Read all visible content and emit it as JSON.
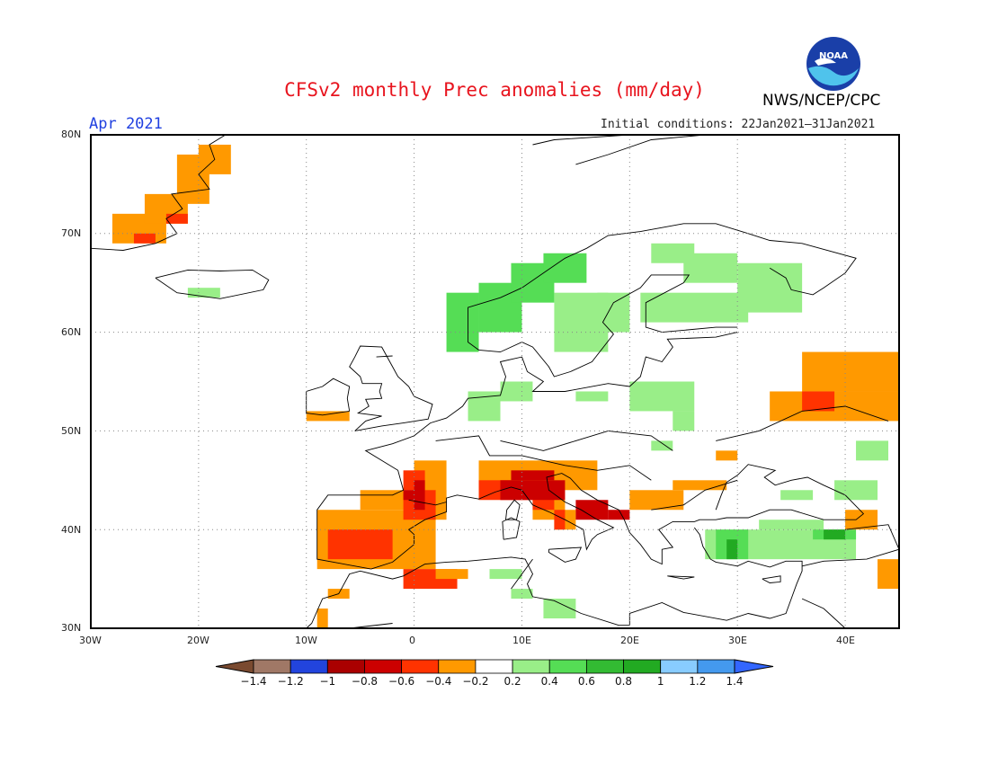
{
  "title": "CFSv2 monthly Prec anomalies (mm/day)",
  "month": "Apr 2021",
  "initial_conditions": "Initial conditions: 22Jan2021–31Jan2021",
  "agency": "NWS/NCEP/CPC",
  "logo_text": "NOAA",
  "map": {
    "lat_labels": [
      "80N",
      "70N",
      "60N",
      "50N",
      "40N",
      "30N"
    ],
    "lon_labels": [
      "30W",
      "20W",
      "10W",
      "0",
      "10E",
      "20E",
      "30E",
      "40E"
    ],
    "lon_range": [
      -30,
      45
    ],
    "lat_range": [
      30,
      80
    ],
    "colors": {
      "frame": "#000000",
      "coast": "#000000",
      "grid": "#888888"
    },
    "anomaly_regions": [
      {
        "name": "Greenland east coast dry",
        "color": "#ff9900",
        "cells": [
          [
            -28,
            69,
            5,
            3
          ],
          [
            -25,
            71,
            4,
            3
          ],
          [
            -22,
            73,
            3,
            5
          ],
          [
            -20,
            76,
            3,
            3
          ]
        ]
      },
      {
        "name": "Greenland dry core",
        "color": "#ff3300",
        "cells": [
          [
            -26,
            69,
            2,
            1
          ],
          [
            -23,
            71,
            2,
            1
          ]
        ]
      },
      {
        "name": "Iceland wet",
        "color": "#99ee88",
        "cells": [
          [
            -21,
            63.5,
            3,
            1
          ]
        ]
      },
      {
        "name": "Scandinavia wet",
        "color": "#55dd55",
        "cells": [
          [
            3,
            58,
            3,
            6
          ],
          [
            6,
            60,
            4,
            5
          ],
          [
            9,
            63,
            4,
            4
          ],
          [
            12,
            65,
            4,
            3
          ]
        ]
      },
      {
        "name": "Scandinavia light wet",
        "color": "#99ee88",
        "cells": [
          [
            13,
            58,
            5,
            6
          ],
          [
            17,
            60,
            3,
            4
          ],
          [
            21,
            61,
            10,
            3
          ],
          [
            25,
            65,
            5,
            3
          ],
          [
            30,
            62,
            6,
            5
          ],
          [
            22,
            67,
            4,
            2
          ]
        ]
      },
      {
        "name": "Central Europe light wet",
        "color": "#99ee88",
        "cells": [
          [
            5,
            51,
            3,
            3
          ],
          [
            8,
            53,
            3,
            2
          ],
          [
            15,
            53,
            3,
            1
          ],
          [
            20,
            52,
            6,
            3
          ],
          [
            24,
            50,
            2,
            2
          ],
          [
            22,
            48,
            2,
            1
          ]
        ]
      },
      {
        "name": "Russia dry",
        "color": "#ff9900",
        "cells": [
          [
            33,
            51,
            12,
            3
          ],
          [
            36,
            54,
            9,
            4
          ]
        ]
      },
      {
        "name": "Russia dry core",
        "color": "#ff3300",
        "cells": [
          [
            36,
            52,
            3,
            2
          ]
        ]
      },
      {
        "name": "Ireland dry",
        "color": "#ff9900",
        "cells": [
          [
            -10,
            51,
            4,
            1
          ]
        ]
      },
      {
        "name": "Iberia dry",
        "color": "#ff9900",
        "cells": [
          [
            -9,
            36,
            11,
            6
          ],
          [
            -5,
            42,
            8,
            2
          ],
          [
            0,
            41,
            3,
            6
          ]
        ]
      },
      {
        "name": "Iberia dry core",
        "color": "#ff3300",
        "cells": [
          [
            -8,
            37,
            6,
            3
          ],
          [
            -1,
            41,
            3,
            3
          ],
          [
            -1,
            44,
            2,
            2
          ]
        ]
      },
      {
        "name": "France/Spain core",
        "color": "#cc0000",
        "cells": [
          [
            0,
            42,
            1,
            3
          ],
          [
            -1,
            43,
            1,
            1
          ]
        ]
      },
      {
        "name": "North Africa dry",
        "color": "#ff3300",
        "cells": [
          [
            -1,
            34,
            5,
            2
          ]
        ]
      },
      {
        "name": "North Africa light dry",
        "color": "#ff9900",
        "cells": [
          [
            -8,
            33,
            2,
            1
          ],
          [
            -9,
            30,
            1,
            2
          ],
          [
            2,
            35,
            3,
            1
          ]
        ]
      },
      {
        "name": "Alps/Italy dry",
        "color": "#ff9900",
        "cells": [
          [
            6,
            44,
            11,
            3
          ],
          [
            11,
            41,
            3,
            3
          ],
          [
            13,
            40,
            2,
            2
          ]
        ]
      },
      {
        "name": "Alps/Italy dry core",
        "color": "#ff3300",
        "cells": [
          [
            6,
            43,
            6,
            2
          ],
          [
            11,
            42,
            2,
            2
          ],
          [
            13,
            40,
            1,
            2
          ]
        ]
      },
      {
        "name": "Italy strong dry",
        "color": "#cc0000",
        "cells": [
          [
            8,
            43,
            6,
            2
          ],
          [
            9,
            45,
            4,
            1
          ],
          [
            15,
            41,
            3,
            2
          ],
          [
            18,
            41,
            2,
            1
          ]
        ]
      },
      {
        "name": "Balkans dry",
        "color": "#ff9900",
        "cells": [
          [
            20,
            42,
            5,
            2
          ],
          [
            24,
            44,
            5,
            1
          ],
          [
            28,
            47,
            2,
            1
          ]
        ]
      },
      {
        "name": "Turkey wet",
        "color": "#99ee88",
        "cells": [
          [
            27,
            37,
            14,
            3
          ],
          [
            32,
            40,
            6,
            1
          ],
          [
            34,
            43,
            3,
            1
          ]
        ]
      },
      {
        "name": "Turkey wet core",
        "color": "#55dd55",
        "cells": [
          [
            28,
            37,
            3,
            3
          ],
          [
            37,
            39,
            4,
            1
          ]
        ]
      },
      {
        "name": "Turkey wet peak",
        "color": "#22aa22",
        "cells": [
          [
            29,
            37,
            1,
            2
          ],
          [
            38,
            39,
            2,
            1
          ]
        ]
      },
      {
        "name": "Caucasus light wet",
        "color": "#99ee88",
        "cells": [
          [
            39,
            43,
            4,
            2
          ],
          [
            41,
            47,
            3,
            2
          ]
        ]
      },
      {
        "name": "East dry",
        "color": "#ff9900",
        "cells": [
          [
            40,
            40,
            3,
            2
          ],
          [
            43,
            34,
            2,
            3
          ]
        ]
      },
      {
        "name": "Libya wet",
        "color": "#99ee88",
        "cells": [
          [
            7,
            35,
            3,
            1
          ],
          [
            9,
            33,
            2,
            1
          ],
          [
            12,
            31,
            3,
            2
          ]
        ]
      }
    ]
  },
  "colorbar": {
    "labels": [
      "-1.4",
      "-1.2",
      "-1",
      "-0.8",
      "-0.6",
      "-0.4",
      "-0.2",
      "0.2",
      "0.4",
      "0.6",
      "0.8",
      "1",
      "1.2",
      "1.4"
    ],
    "colors": [
      "#7a4a30",
      "#a07866",
      "#2244dd",
      "#aa0000",
      "#cc0000",
      "#ff3300",
      "#ff9900",
      "#ffffff",
      "#99ee88",
      "#55dd55",
      "#33bb33",
      "#22aa22",
      "#88ccff",
      "#4499ee",
      "#3366ff"
    ]
  }
}
